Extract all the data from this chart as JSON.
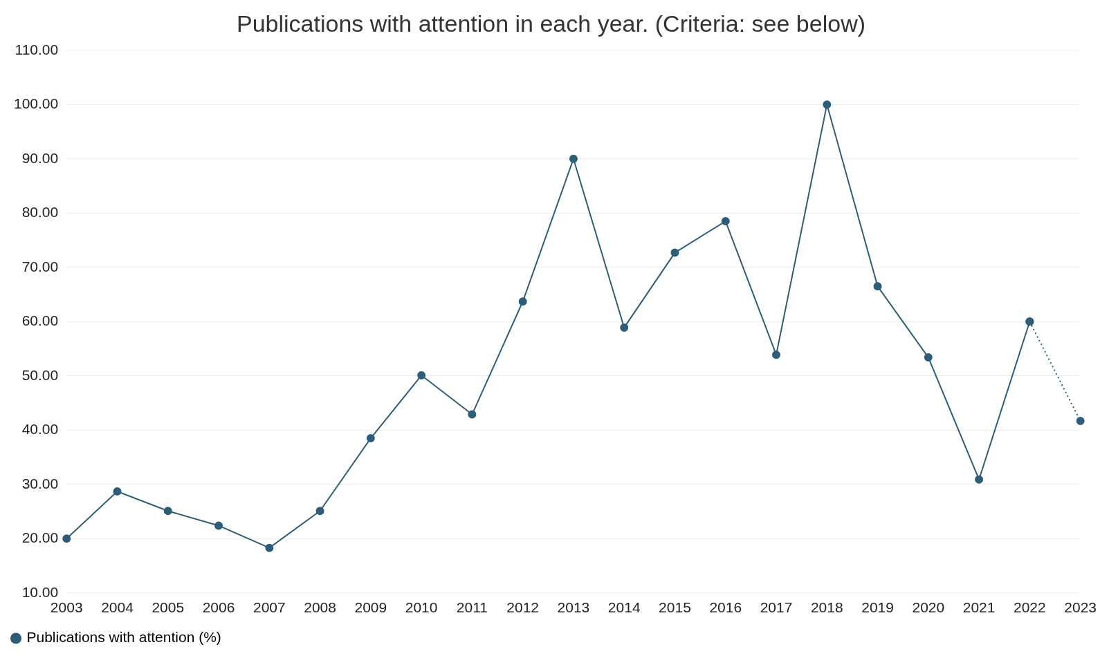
{
  "chart_data": {
    "type": "line",
    "title": "Publications with attention in each year. (Criteria: see below)",
    "categories": [
      "2003",
      "2004",
      "2005",
      "2006",
      "2007",
      "2008",
      "2009",
      "2010",
      "2011",
      "2012",
      "2013",
      "2014",
      "2015",
      "2016",
      "2017",
      "2018",
      "2019",
      "2020",
      "2021",
      "2022",
      "2023"
    ],
    "series": [
      {
        "name": "Publications with attention (%)",
        "color": "#2e5d78",
        "line_style": "solid",
        "values": [
          20,
          28.7,
          25.1,
          22.4,
          18.3,
          25.1,
          38.5,
          50.1,
          42.9,
          63.7,
          90,
          58.9,
          72.7,
          78.5,
          53.9,
          100,
          66.5,
          53.4,
          30.9,
          60,
          null
        ]
      },
      {
        "color": "#2e5d78",
        "line_style": "dotted",
        "values": [
          null,
          null,
          null,
          null,
          null,
          null,
          null,
          null,
          null,
          null,
          null,
          null,
          null,
          null,
          null,
          null,
          null,
          null,
          null,
          60,
          41.7
        ]
      }
    ],
    "ylim": [
      10,
      110
    ],
    "yticks": [
      {
        "value": 10,
        "label": "10.00"
      },
      {
        "value": 20,
        "label": "20.00"
      },
      {
        "value": 30,
        "label": "30.00"
      },
      {
        "value": 40,
        "label": "40.00"
      },
      {
        "value": 50,
        "label": "50.00"
      },
      {
        "value": 60,
        "label": "60.00"
      },
      {
        "value": 70,
        "label": "70.00"
      },
      {
        "value": 80,
        "label": "80.00"
      },
      {
        "value": 90,
        "label": "90.00"
      },
      {
        "value": 100,
        "label": "100.00"
      },
      {
        "value": 110,
        "label": "110.00"
      }
    ],
    "grid": "y",
    "legend": "bottom left",
    "marker": "circle"
  }
}
